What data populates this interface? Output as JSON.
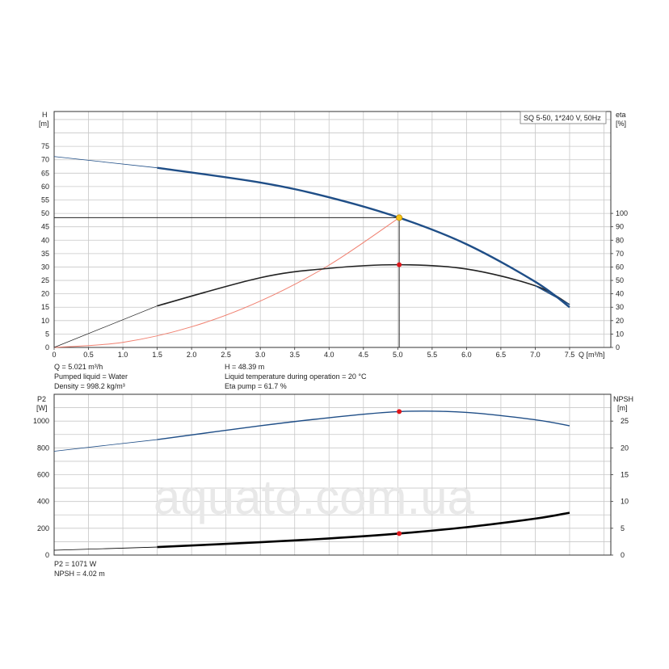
{
  "chart_data": [
    {
      "type": "line",
      "model_label": "SQ 5-50, 1*240 V, 50Hz",
      "y_left_label": "H",
      "y_left_unit": "[m]",
      "y_right_label": "eta",
      "y_right_unit": "[%]",
      "x_label": "Q [m³/h]",
      "xlim": [
        0,
        8.1
      ],
      "ylim_left": [
        0,
        88
      ],
      "ylim_right": [
        0,
        176
      ],
      "x_ticks": [
        "0",
        "0.5",
        "1.0",
        "1.5",
        "2.0",
        "2.5",
        "3.0",
        "3.5",
        "4.0",
        "4.5",
        "5.0",
        "5.5",
        "6.0",
        "6.5",
        "7.0",
        "7.5"
      ],
      "y_left_ticks": [
        "0",
        "5",
        "10",
        "15",
        "20",
        "25",
        "30",
        "35",
        "40",
        "45",
        "50",
        "55",
        "60",
        "65",
        "70",
        "75"
      ],
      "y_right_ticks": [
        "0",
        "10",
        "20",
        "30",
        "40",
        "50",
        "60",
        "70",
        "80",
        "90",
        "100"
      ],
      "grid": true,
      "series": [
        {
          "key": "head",
          "color": "#1f4e87",
          "x": [
            0,
            1.5,
            3.0,
            4.0,
            5.021,
            6.0,
            7.0,
            7.5
          ],
          "y": [
            71.2,
            67.0,
            61.5,
            56.0,
            48.39,
            38.5,
            24.5,
            15.0
          ]
        },
        {
          "key": "efficiency",
          "color": "#222222",
          "x": [
            0,
            1.5,
            3.0,
            4.0,
            5.021,
            6.0,
            7.0,
            7.5
          ],
          "y": [
            0,
            31.0,
            52.0,
            59.0,
            61.7,
            58.5,
            46.0,
            32.0
          ]
        },
        {
          "key": "system_curve",
          "color": "#f08070",
          "x": [
            0,
            1.0,
            2.0,
            3.0,
            4.0,
            5.021
          ],
          "y": [
            0,
            1.9,
            7.7,
            17.3,
            30.7,
            48.39
          ]
        },
        {
          "key": "upper_end",
          "color": "#1f4e87",
          "x": [
            7.0,
            7.5
          ],
          "y": [
            23.0,
            16.0
          ]
        }
      ],
      "duty_point": {
        "Q": 5.021,
        "H": 48.39,
        "eta": 61.7
      },
      "info": {
        "q": "Q = 5.021 m³/h",
        "h": "H = 48.39 m",
        "liquid": "Pumped liquid = Water",
        "temp": "Liquid temperature during operation = 20 °C",
        "density": "Density = 998.2 kg/m³",
        "eta": "Eta pump = 61.7 %"
      }
    },
    {
      "type": "line",
      "y_left_label": "P2",
      "y_left_unit": "[W]",
      "y_right_label": "NPSH",
      "y_right_unit": "[m]",
      "xlim": [
        0,
        8.1
      ],
      "ylim_left": [
        0,
        1200
      ],
      "ylim_right": [
        0,
        30
      ],
      "y_left_ticks": [
        "0",
        "200",
        "400",
        "600",
        "800",
        "1000"
      ],
      "y_right_ticks": [
        "0",
        "5",
        "10",
        "15",
        "20",
        "25"
      ],
      "grid": true,
      "series": [
        {
          "key": "p2",
          "color": "#1f4e87",
          "x": [
            0,
            1.5,
            3.0,
            4.0,
            5.021,
            6.0,
            7.0,
            7.5
          ],
          "y": [
            775,
            862,
            965,
            1025,
            1071,
            1065,
            1010,
            965
          ]
        },
        {
          "key": "npsh",
          "color": "#000000",
          "x": [
            0,
            1.5,
            3.0,
            4.0,
            5.021,
            6.0,
            7.0,
            7.5
          ],
          "y": [
            0.9,
            1.5,
            2.4,
            3.1,
            4.02,
            5.2,
            6.8,
            7.9
          ]
        }
      ],
      "duty_point": {
        "Q": 5.021,
        "P2": 1071,
        "NPSH": 4.02
      },
      "info": {
        "p2": "P2 = 1071 W",
        "npsh": "NPSH = 4.02 m"
      }
    }
  ],
  "watermark": "aquato.com.ua"
}
